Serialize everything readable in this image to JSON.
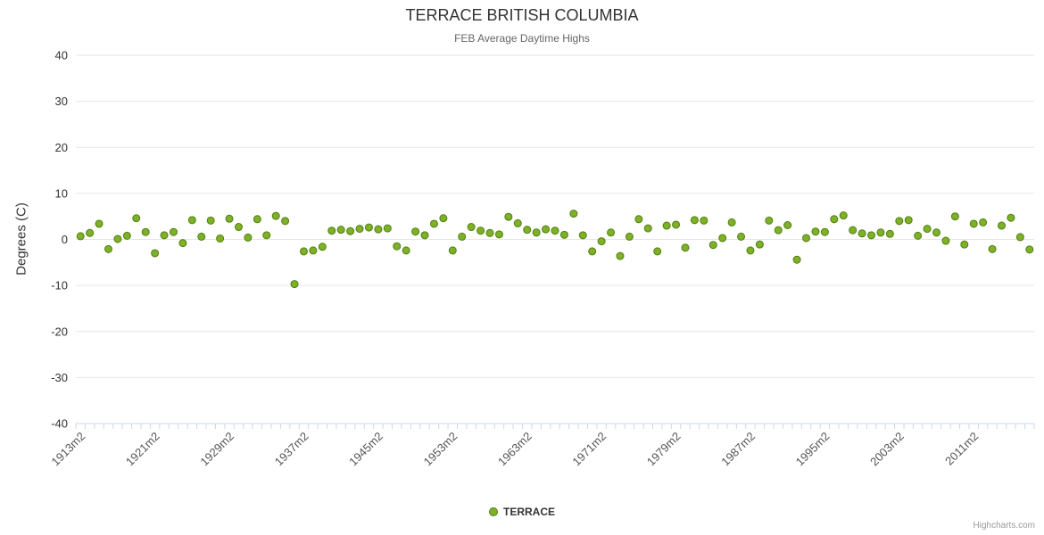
{
  "title": "TERRACE BRITISH COLUMBIA",
  "subtitle": "FEB Average Daytime Highs",
  "legend": {
    "label": "TERRACE"
  },
  "credits": "Highcharts.com",
  "colors": {
    "point_fill": "#7db228",
    "point_stroke": "#527d0e",
    "grid": "#e6e6e6",
    "axis_line": "#ccd6eb",
    "tick": "#ccd6eb",
    "y_label": "#333333",
    "x_label": "#555555"
  },
  "y_axis": {
    "title": "Degrees (C)",
    "ticks": [
      40,
      30,
      20,
      10,
      0,
      -10,
      -20,
      -30,
      -40
    ]
  },
  "x_axis": {
    "tick_labels": [
      "1913m2",
      "1921m2",
      "1929m2",
      "1937m2",
      "1945m2",
      "1953m2",
      "1963m2",
      "1971m2",
      "1979m2",
      "1987m2",
      "1995m2",
      "2003m2",
      "2011m2"
    ],
    "label_step": 8
  },
  "chart_data": {
    "type": "scatter",
    "title": "TERRACE BRITISH COLUMBIA",
    "subtitle": "FEB Average Daytime Highs",
    "xlabel": "",
    "ylabel": "Degrees (C)",
    "ylim": [
      -40,
      40
    ],
    "grid": true,
    "legend_position": "bottom",
    "series_name": "TERRACE",
    "x": [
      1913,
      1914,
      1915,
      1916,
      1917,
      1918,
      1919,
      1920,
      1921,
      1922,
      1923,
      1924,
      1925,
      1926,
      1927,
      1928,
      1929,
      1930,
      1931,
      1932,
      1933,
      1934,
      1935,
      1936,
      1937,
      1938,
      1939,
      1940,
      1941,
      1942,
      1943,
      1944,
      1945,
      1946,
      1947,
      1948,
      1949,
      1950,
      1951,
      1952,
      1953,
      1954,
      1955,
      1956,
      1957,
      1958,
      1959,
      1960,
      1961,
      1962,
      1963,
      1964,
      1965,
      1966,
      1967,
      1968,
      1969,
      1970,
      1971,
      1972,
      1973,
      1974,
      1975,
      1976,
      1977,
      1978,
      1979,
      1980,
      1981,
      1982,
      1983,
      1984,
      1985,
      1986,
      1987,
      1988,
      1989,
      1990,
      1991,
      1992,
      1993,
      1994,
      1995,
      1996,
      1997,
      1998,
      1999,
      2000,
      2001,
      2002,
      2003,
      2004,
      2005,
      2006,
      2007,
      2008,
      2009,
      2010,
      2011,
      2012,
      2013,
      2014,
      2015
    ],
    "values": [
      0.7,
      1.4,
      3.4,
      -2.1,
      0.1,
      0.8,
      4.6,
      1.6,
      -3.0,
      0.9,
      1.6,
      -0.8,
      4.2,
      0.6,
      4.1,
      0.2,
      4.5,
      2.7,
      0.4,
      4.4,
      0.9,
      5.1,
      4.0,
      -9.7,
      -2.6,
      -2.4,
      -1.6,
      1.9,
      2.1,
      1.8,
      2.3,
      2.6,
      2.2,
      2.4,
      -1.5,
      -2.4,
      1.7,
      0.9,
      3.4,
      4.6,
      -2.4,
      0.6,
      2.7,
      1.9,
      1.4,
      1.1,
      4.9,
      3.5,
      2.1,
      1.5,
      2.2,
      1.9,
      1.0,
      5.6,
      0.9,
      -2.6,
      -0.4,
      1.5,
      -3.6,
      0.6,
      4.4,
      2.4,
      -2.6,
      3.0,
      3.2,
      -1.8,
      4.2,
      4.1,
      -1.2,
      0.3,
      3.7,
      0.6,
      -2.4,
      -1.1,
      4.1,
      2.0,
      3.1,
      -4.4,
      0.3,
      1.7,
      1.6,
      4.4,
      5.2,
      2.0,
      1.3,
      0.9,
      1.5,
      1.2,
      4.0,
      4.2,
      0.8,
      2.3,
      1.5,
      -0.3,
      5.0,
      -1.1,
      3.4,
      3.7,
      -2.1,
      3.0,
      4.7,
      0.5,
      -2.2
    ]
  }
}
